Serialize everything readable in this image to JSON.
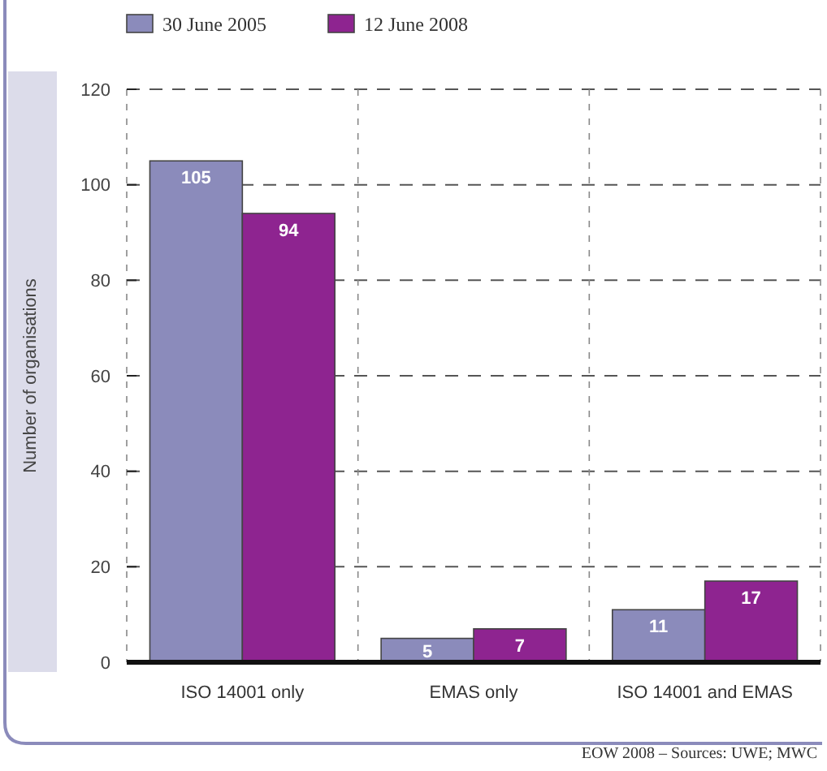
{
  "chart_data": {
    "type": "bar",
    "ylabel": "Number of organisations",
    "categories": [
      "ISO 14001 only",
      "EMAS only",
      "ISO 14001 and EMAS"
    ],
    "series": [
      {
        "name": "30 June 2005",
        "color": "#8b8bbb",
        "values": [
          105,
          5,
          11
        ]
      },
      {
        "name": "12 June 2008",
        "color": "#8e2490",
        "values": [
          94,
          7,
          17
        ]
      }
    ],
    "ylim": [
      0,
      120
    ],
    "yticks": [
      0,
      20,
      40,
      60,
      80,
      100,
      120
    ],
    "grid": true,
    "legend": "top",
    "data_labels": true,
    "annotations": [
      "EOW 2008 – Sources: UWE; MWC"
    ]
  }
}
